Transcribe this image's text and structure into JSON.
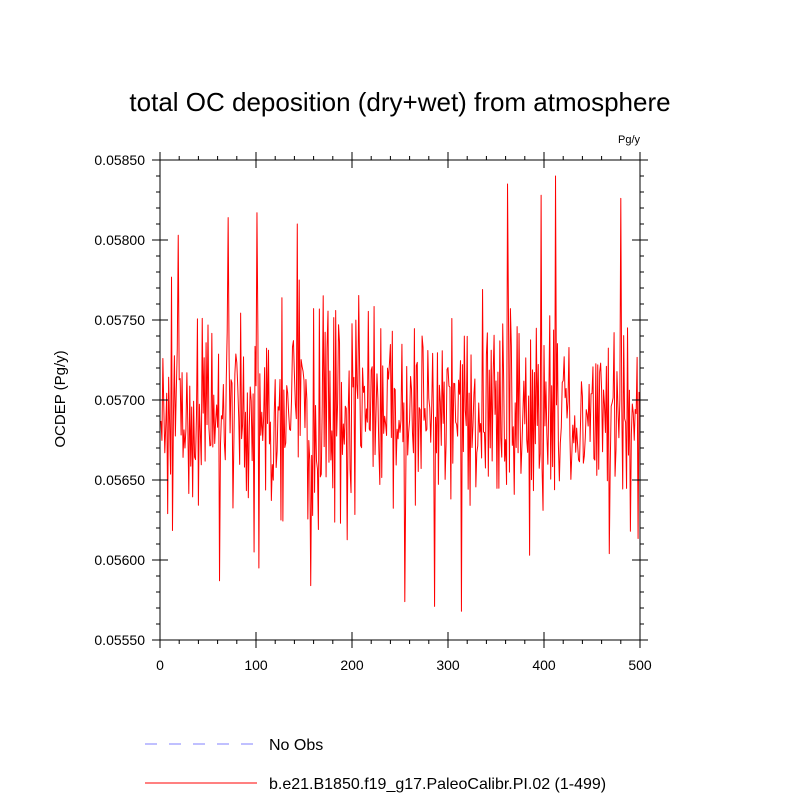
{
  "chart_data": {
    "type": "line",
    "title": "total OC deposition (dry+wet) from atmosphere",
    "units_label": "Pg/y",
    "xlabel": "",
    "ylabel": "OCDEP  (Pg/y)",
    "xlim": [
      0,
      500
    ],
    "ylim": [
      0.0555,
      0.0585
    ],
    "x_ticks": [
      0,
      100,
      200,
      300,
      400,
      500
    ],
    "x_tick_labels": [
      "0",
      "100",
      "200",
      "300",
      "400",
      "500"
    ],
    "y_ticks": [
      0.0555,
      0.056,
      0.0565,
      0.057,
      0.0575,
      0.058,
      0.0585
    ],
    "y_tick_labels": [
      "0.05550",
      "0.05600",
      "0.05650",
      "0.05700",
      "0.05750",
      "0.05800",
      "0.05850"
    ],
    "grid": false,
    "series": [
      {
        "name": "No Obs",
        "style": "dashed",
        "color": "#8080ff",
        "values": []
      },
      {
        "name": "b.e21.B1850.f19_g17.PaleoCalibr.PI.02 (1-499)",
        "style": "solid",
        "color": "#ff0000",
        "x_start": 1,
        "x_end": 499,
        "mean": 0.05695,
        "std": 0.0004,
        "min": 0.05568,
        "max": 0.0584,
        "extremes": [
          {
            "x": 19,
            "y": 0.05803
          },
          {
            "x": 62,
            "y": 0.05587
          },
          {
            "x": 71,
            "y": 0.05814
          },
          {
            "x": 98,
            "y": 0.05605
          },
          {
            "x": 101,
            "y": 0.05817
          },
          {
            "x": 103,
            "y": 0.05595
          },
          {
            "x": 143,
            "y": 0.0581
          },
          {
            "x": 157,
            "y": 0.05584
          },
          {
            "x": 255,
            "y": 0.05574
          },
          {
            "x": 286,
            "y": 0.05571
          },
          {
            "x": 314,
            "y": 0.05568
          },
          {
            "x": 362,
            "y": 0.05835
          },
          {
            "x": 385,
            "y": 0.05603
          },
          {
            "x": 397,
            "y": 0.05828
          },
          {
            "x": 412,
            "y": 0.0584
          },
          {
            "x": 468,
            "y": 0.05604
          },
          {
            "x": 480,
            "y": 0.05826
          },
          {
            "x": 490,
            "y": 0.05618
          }
        ]
      }
    ],
    "legend_position": "bottom-left"
  },
  "colors": {
    "series_line": "#ff0000",
    "no_obs_line": "#8080ff",
    "axis": "#000000",
    "background": "#ffffff"
  }
}
